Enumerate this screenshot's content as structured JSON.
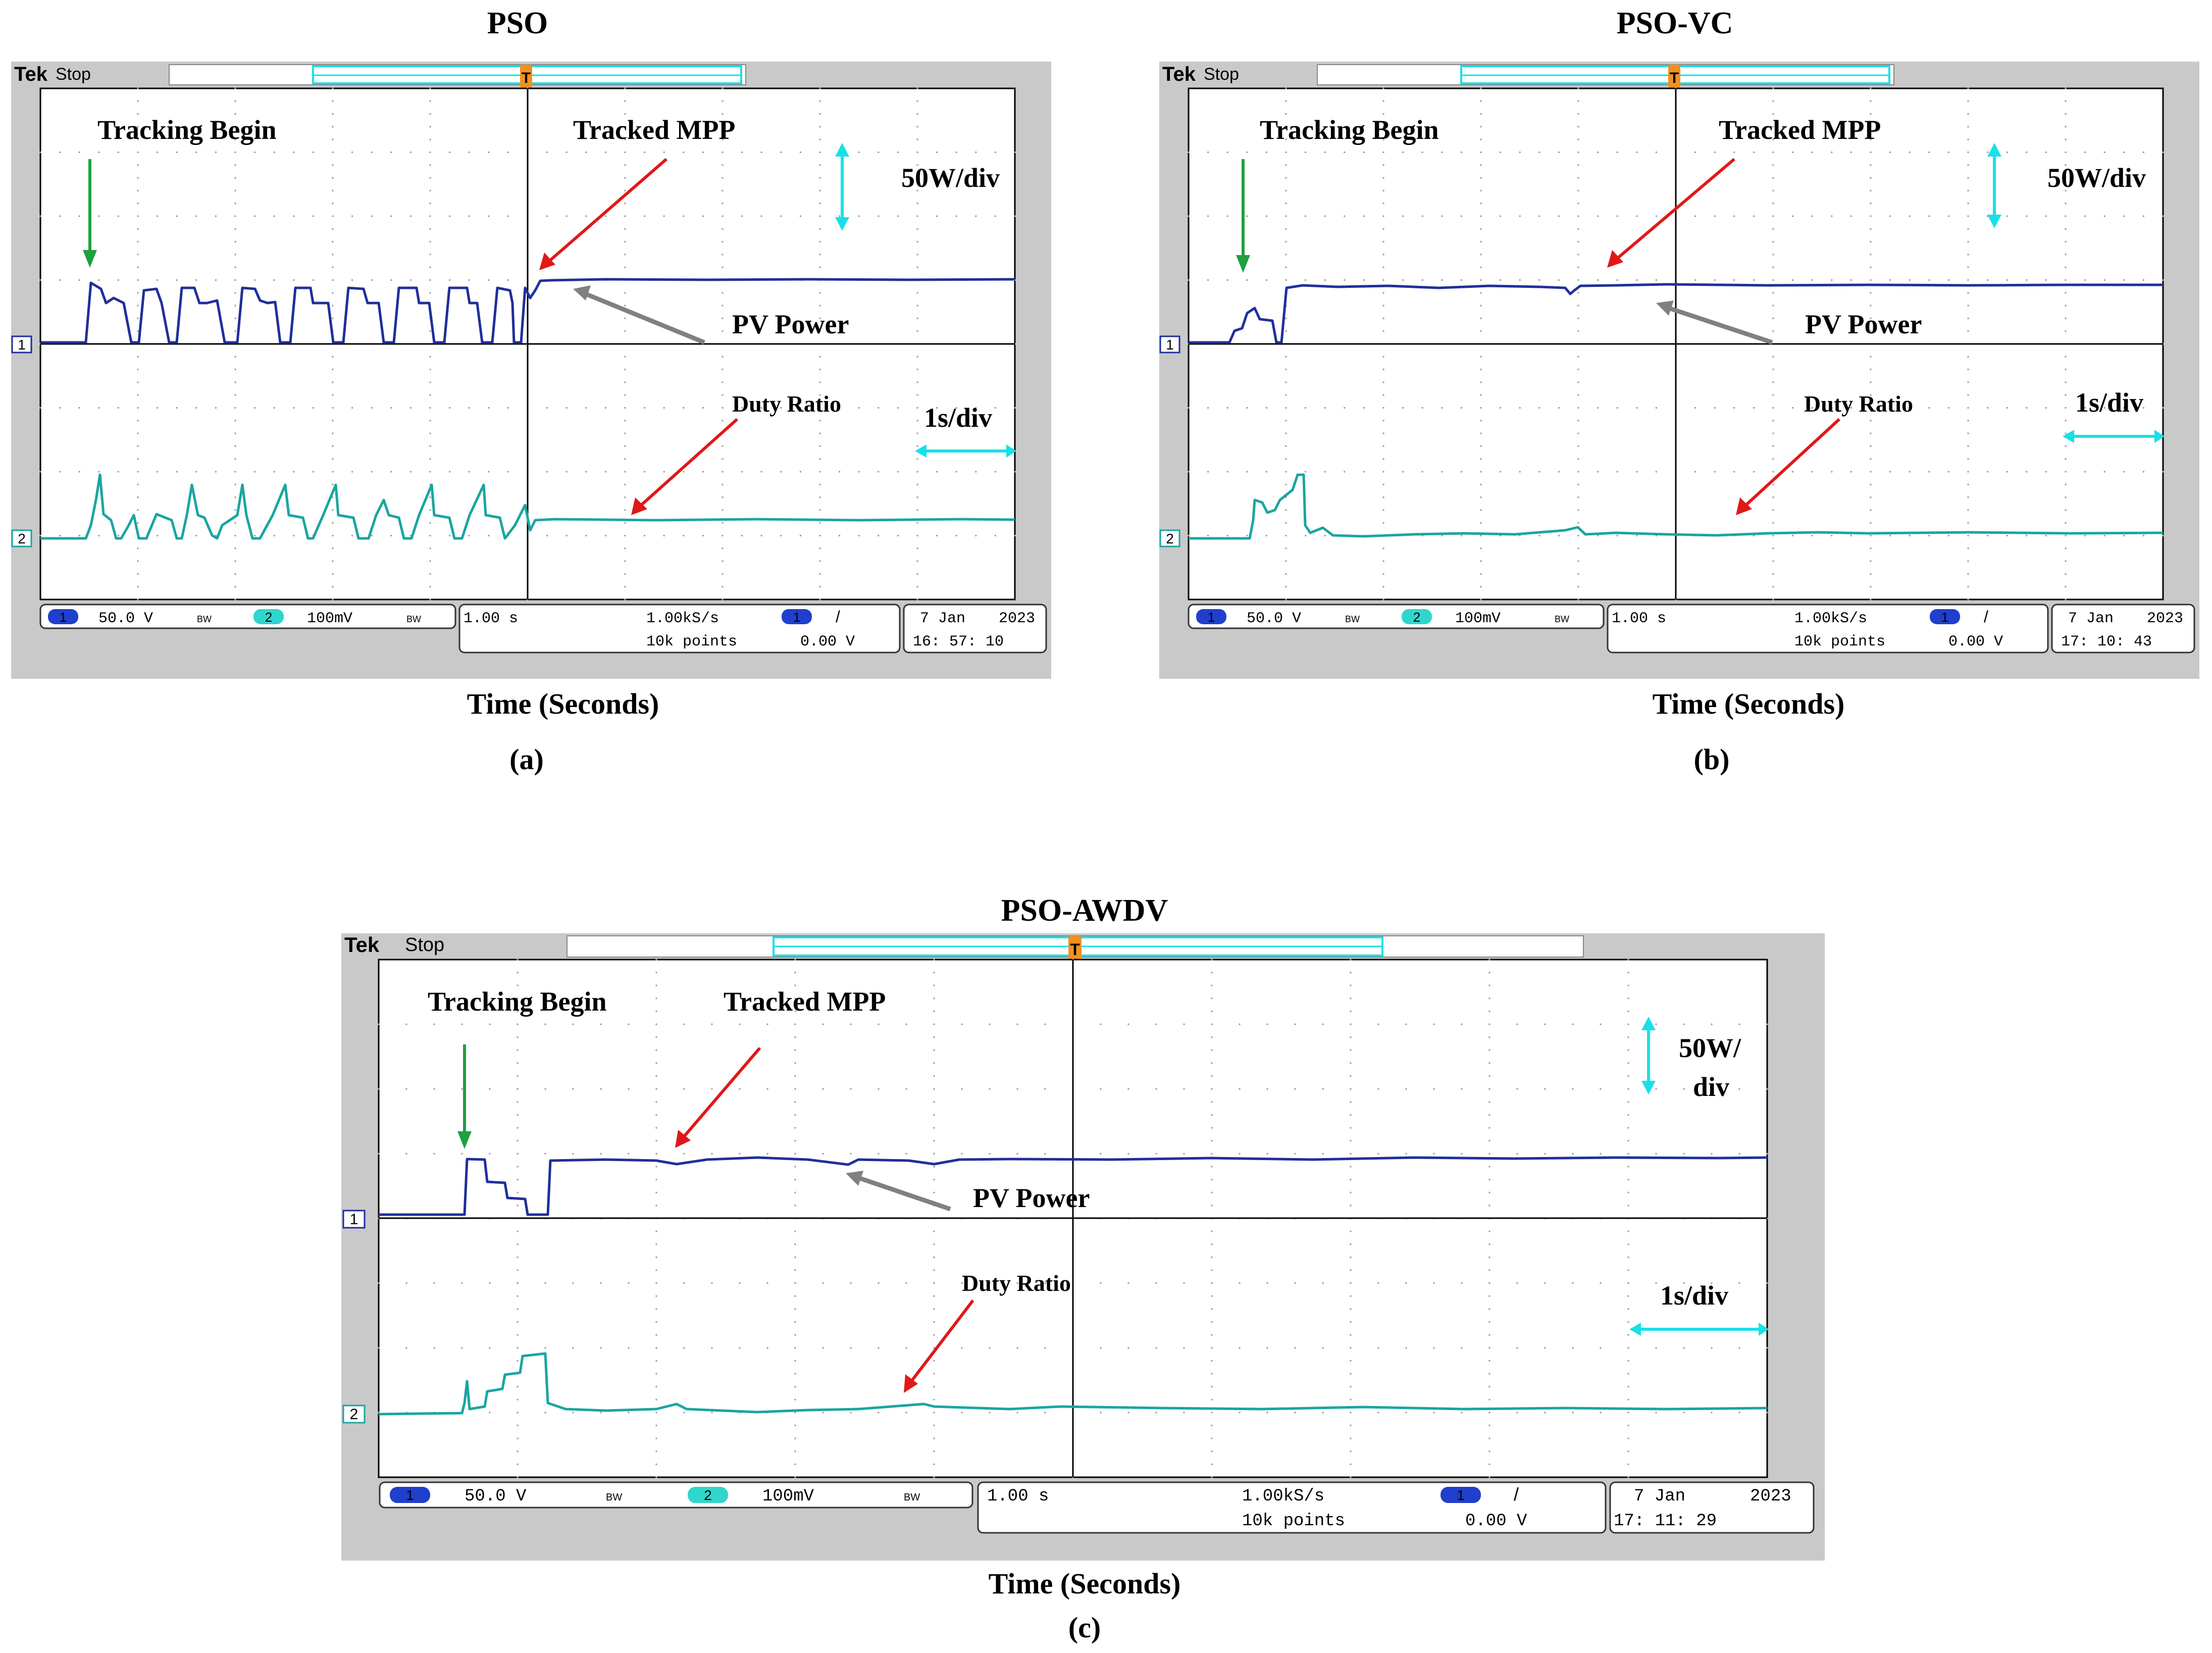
{
  "figure": {
    "axis_title": "Time (Seconds)",
    "panels": [
      {
        "id": "a",
        "title": "PSO",
        "letter": "(a)",
        "annotations": {
          "tracking_begin": "Tracking Begin",
          "tracked_mpp": "Tracked MPP",
          "pv_power": "PV Power",
          "duty_ratio": "Duty Ratio",
          "power_scale": "50W/div",
          "time_scale": "1s/div"
        },
        "scope": {
          "brand": "Tek",
          "state": "Stop",
          "ch1_num": "1",
          "ch1_scale": "50.0 V",
          "ch1_bw": "BW",
          "ch2_num": "2",
          "ch2_scale": "100mV",
          "ch2_bw": "BW",
          "timebase": "1.00 s",
          "sample_rate": "1.00kS/s",
          "record_length": "10k points",
          "trig_ch": "1",
          "trig_slope": "/",
          "trig_level": "0.00 V",
          "date": "7 Jan",
          "year": "2023",
          "time": "16: 57: 10",
          "ch1_marker": "1",
          "ch2_marker": "2"
        }
      },
      {
        "id": "b",
        "title": "PSO-VC",
        "letter": "(b)",
        "annotations": {
          "tracking_begin": "Tracking Begin",
          "tracked_mpp": "Tracked MPP",
          "pv_power": "PV Power",
          "duty_ratio": "Duty Ratio",
          "power_scale": "50W/div",
          "time_scale": "1s/div"
        },
        "scope": {
          "brand": "Tek",
          "state": "Stop",
          "ch1_num": "1",
          "ch1_scale": "50.0 V",
          "ch1_bw": "BW",
          "ch2_num": "2",
          "ch2_scale": "100mV",
          "ch2_bw": "BW",
          "timebase": "1.00 s",
          "sample_rate": "1.00kS/s",
          "record_length": "10k points",
          "trig_ch": "1",
          "trig_slope": "/",
          "trig_level": "0.00 V",
          "date": "7 Jan",
          "year": "2023",
          "time": "17: 10: 43",
          "ch1_marker": "1",
          "ch2_marker": "2"
        }
      },
      {
        "id": "c",
        "title": "PSO-AWDV",
        "letter": "(c)",
        "annotations": {
          "tracking_begin": "Tracking Begin",
          "tracked_mpp": "Tracked MPP",
          "pv_power": "PV Power",
          "duty_ratio": "Duty Ratio",
          "power_scale_l1": "50W/",
          "power_scale_l2": "div",
          "time_scale": "1s/div"
        },
        "scope": {
          "brand": "Tek",
          "state": "Stop",
          "ch1_num": "1",
          "ch1_scale": "50.0 V",
          "ch1_bw": "BW",
          "ch2_num": "2",
          "ch2_scale": "100mV",
          "ch2_bw": "BW",
          "timebase": "1.00 s",
          "sample_rate": "1.00kS/s",
          "record_length": "10k points",
          "trig_ch": "1",
          "trig_slope": "/",
          "trig_level": "0.00 V",
          "date": "7 Jan",
          "year": "2023",
          "time": "17: 11: 29",
          "ch1_marker": "1",
          "ch2_marker": "2"
        }
      }
    ],
    "colors": {
      "ch1": "#1f2f9a",
      "ch2": "#1aa5a0",
      "grid_bg": "#ffffff",
      "frame": "#c9c9c9",
      "tracking_arrow": "#1fa040",
      "mpp_arrow": "#e01818",
      "pv_arrow": "#808080",
      "scale_arrow": "#19e0e8"
    }
  }
}
